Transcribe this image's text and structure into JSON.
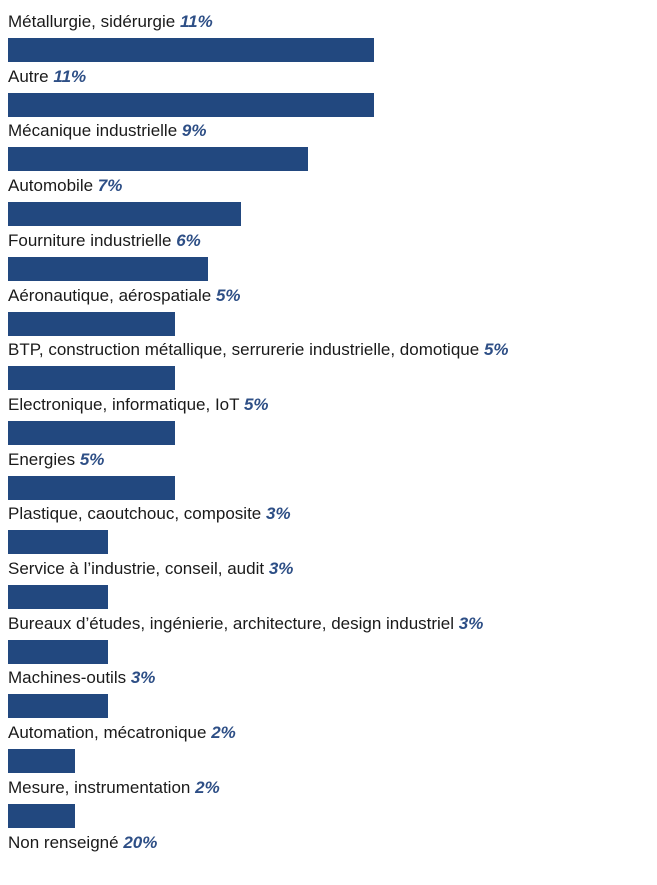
{
  "chart_data": {
    "type": "bar",
    "orientation": "horizontal",
    "bar_color": "#22487f",
    "value_color": "#2e4f86",
    "categories": [
      "Métallurgie, sidérurgie",
      "Autre",
      "Mécanique industrielle",
      "Automobile",
      "Fourniture industrielle",
      "Aéronautique, aérospatiale",
      "BTP, construction métallique, serrurerie industrielle, domotique",
      "Electronique, informatique, IoT",
      "Energies",
      "Plastique, caoutchouc, composite",
      "Service à l’industrie, conseil, audit",
      "Bureaux d’études, ingénierie, architecture, design industriel",
      "Machines-outils",
      "Automation, mécatronique",
      "Mesure, instrumentation",
      "Non renseigné"
    ],
    "values": [
      11,
      11,
      9,
      7,
      6,
      5,
      5,
      5,
      5,
      3,
      3,
      3,
      3,
      2,
      2,
      20
    ],
    "value_labels": [
      "11%",
      "11%",
      "9%",
      "7%",
      "6%",
      "5%",
      "5%",
      "5%",
      "5%",
      "3%",
      "3%",
      "3%",
      "3%",
      "2%",
      "2%",
      "20%"
    ],
    "unit": "%",
    "bars_drawn": 15
  }
}
